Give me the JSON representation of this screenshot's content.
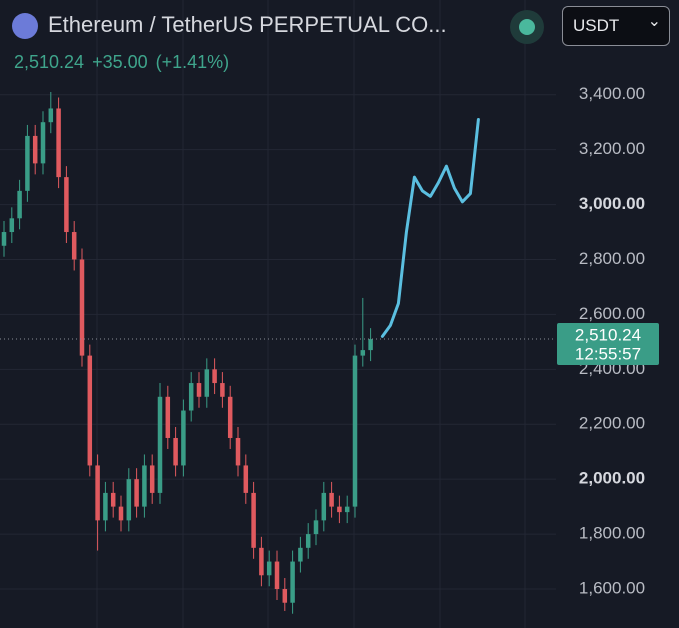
{
  "header": {
    "symbol": "Ethereum / TetherUS PERPETUAL CO...",
    "price": "2,510.24",
    "change": "+35.00",
    "change_pct": "(+1.41%)",
    "currency": "USDT"
  },
  "chart_data": {
    "type": "candlestick",
    "up_color": "#3a9d87",
    "down_color": "#e05a5f",
    "grid": true,
    "ylim": [
      1458,
      3745
    ],
    "yticks": [
      {
        "value": 1600,
        "label": "1,600.00"
      },
      {
        "value": 1800,
        "label": "1,800.00"
      },
      {
        "value": 2000,
        "label": "2,000.00"
      },
      {
        "value": 2200,
        "label": "2,200.00"
      },
      {
        "value": 2400,
        "label": "2,400.00"
      },
      {
        "value": 2600,
        "label": "2,600.00"
      },
      {
        "value": 2800,
        "label": "2,800.00"
      },
      {
        "value": 3000,
        "label": "3,000.00"
      },
      {
        "value": 3200,
        "label": "3,200.00"
      },
      {
        "value": 3400,
        "label": "3,400.00"
      }
    ],
    "open": [
      2850,
      2900,
      2950,
      3050,
      3250,
      3150,
      3300,
      3350,
      3100,
      2900,
      2800,
      2450,
      2050,
      1850,
      1950,
      1900,
      1850,
      2000,
      1900,
      2050,
      1950,
      2300,
      2150,
      2050,
      2250,
      2350,
      2300,
      2400,
      2350,
      2300,
      2150,
      2050,
      1950,
      1750,
      1650,
      1700,
      1600,
      1550,
      1700,
      1750,
      1800,
      1850,
      1950,
      1900,
      1880,
      1900,
      2450,
      2470
    ],
    "high": [
      2940,
      2990,
      3090,
      3290,
      3290,
      3340,
      3410,
      3390,
      3140,
      2940,
      2840,
      2490,
      2090,
      1990,
      1990,
      1940,
      2040,
      2040,
      2090,
      2090,
      2350,
      2340,
      2190,
      2290,
      2390,
      2390,
      2440,
      2440,
      2390,
      2340,
      2190,
      2090,
      1990,
      1790,
      1740,
      1740,
      1640,
      1740,
      1790,
      1840,
      1890,
      1990,
      1990,
      1940,
      1940,
      2490,
      2660,
      2550
    ],
    "low": [
      2810,
      2860,
      2910,
      3010,
      3110,
      3110,
      3260,
      3060,
      2860,
      2760,
      2410,
      2010,
      1740,
      1810,
      1860,
      1810,
      1810,
      1860,
      1860,
      1910,
      1910,
      2110,
      2010,
      2010,
      2210,
      2260,
      2260,
      2310,
      2260,
      2110,
      2010,
      1910,
      1710,
      1610,
      1610,
      1560,
      1520,
      1510,
      1660,
      1710,
      1760,
      1810,
      1860,
      1840,
      1840,
      1860,
      2410,
      2430
    ],
    "close": [
      2900,
      2950,
      3050,
      3250,
      3150,
      3300,
      3350,
      3100,
      2900,
      2800,
      2450,
      2050,
      1850,
      1950,
      1900,
      1850,
      2000,
      1900,
      2050,
      1950,
      2300,
      2150,
      2050,
      2250,
      2350,
      2300,
      2400,
      2350,
      2300,
      2150,
      2050,
      1950,
      1750,
      1650,
      1700,
      1600,
      1550,
      1700,
      1750,
      1800,
      1850,
      1950,
      1900,
      1880,
      1900,
      2450,
      2470,
      2510.24
    ],
    "last_price": {
      "value": 2510.24,
      "label": "2,510.24"
    },
    "countdown": "12:55:57",
    "drawing": {
      "color": "#5bbfe0",
      "values": [
        2520,
        2560,
        2640,
        2900,
        3100,
        3050,
        3030,
        3080,
        3140,
        3060,
        3010,
        3040,
        3310
      ]
    }
  }
}
